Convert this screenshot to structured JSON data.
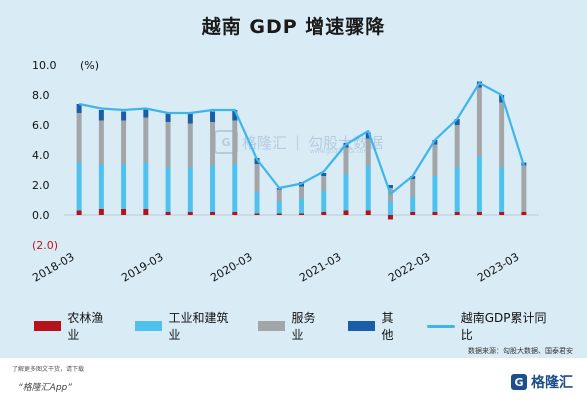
{
  "chart_data": {
    "type": "bar",
    "title": "越南 GDP 增速骤降",
    "unit_label": "(%)",
    "ylim": [
      -2.0,
      10.0
    ],
    "y_ticks": [
      "10.0",
      "8.0",
      "6.0",
      "4.0",
      "2.0",
      "0.0",
      "(2.0)"
    ],
    "y_tick_values": [
      10,
      8,
      6,
      4,
      2,
      0,
      -2
    ],
    "x_tick_labels": [
      "2018-03",
      "2019-03",
      "2020-03",
      "2021-03",
      "2022-03",
      "2023-03"
    ],
    "x_tick_index": [
      0,
      4,
      8,
      12,
      16,
      20
    ],
    "categories": [
      "2018-03",
      "2018-06",
      "2018-09",
      "2018-12",
      "2019-03",
      "2019-06",
      "2019-09",
      "2019-12",
      "2020-03",
      "2020-06",
      "2020-09",
      "2020-12",
      "2021-03",
      "2021-06",
      "2021-09",
      "2021-12",
      "2022-03",
      "2022-06",
      "2022-09",
      "2022-12",
      "2023-03"
    ],
    "series": [
      {
        "name": "农林渔业",
        "color": "#b5121b",
        "values": [
          0.3,
          0.4,
          0.4,
          0.4,
          0.2,
          0.2,
          0.2,
          0.2,
          0.1,
          0.1,
          0.1,
          0.2,
          0.3,
          0.3,
          -0.3,
          0.2,
          0.2,
          0.2,
          0.2,
          0.2,
          0.2
        ]
      },
      {
        "name": "工业和建筑业",
        "color": "#4fc1ef",
        "values": [
          3.2,
          3.0,
          3.0,
          3.1,
          3.0,
          3.0,
          3.1,
          3.2,
          1.4,
          0.8,
          1.0,
          1.4,
          2.4,
          3.0,
          0.9,
          1.0,
          2.4,
          3.0,
          3.7,
          3.0,
          0.0
        ]
      },
      {
        "name": "服务业",
        "color": "#a3a6a8",
        "values": [
          3.3,
          2.9,
          2.9,
          3.0,
          3.0,
          2.9,
          2.9,
          2.9,
          1.9,
          0.8,
          0.8,
          1.0,
          1.8,
          1.8,
          0.9,
          1.2,
          2.1,
          2.8,
          4.6,
          4.3,
          3.1
        ]
      },
      {
        "name": "其他",
        "color": "#1a5ea8",
        "values": [
          0.6,
          0.7,
          0.6,
          0.6,
          0.6,
          0.7,
          0.7,
          0.7,
          0.4,
          0.1,
          0.3,
          0.2,
          0.3,
          0.4,
          0.2,
          0.2,
          0.3,
          0.4,
          0.4,
          0.5,
          0.2
        ]
      },
      {
        "name": "越南GDP累计同比",
        "color": "#3fb6ea",
        "type": "line",
        "values": [
          7.4,
          7.1,
          7.0,
          7.1,
          6.8,
          6.8,
          7.0,
          7.0,
          3.7,
          1.8,
          2.1,
          2.9,
          4.7,
          5.6,
          1.4,
          2.6,
          5.0,
          6.4,
          8.8,
          8.0,
          3.3
        ]
      }
    ],
    "legend_position": "bottom",
    "grid": false
  },
  "watermark": {
    "cn": "格隆汇",
    "sep": "|",
    "brand": "勾股大数据",
    "url": "www.gogudata.com",
    "mark": "G"
  },
  "source_text": "数据来源：勾股大数据、国泰君安",
  "footer": {
    "note": "了解更多图文干货，请下载",
    "app": "“格隆汇App”",
    "logo_mark": "G",
    "logo_text": "格隆汇"
  }
}
